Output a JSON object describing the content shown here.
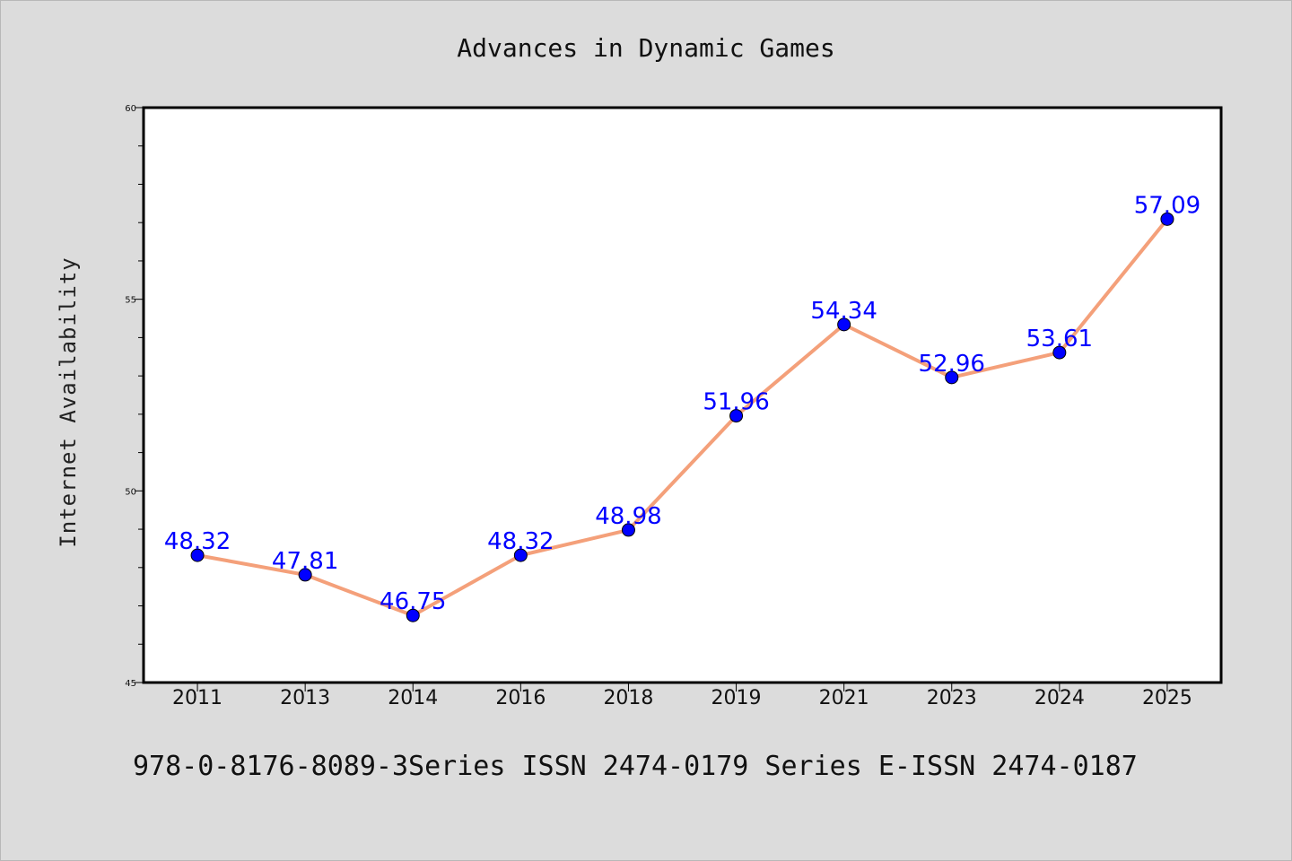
{
  "chart_data": {
    "type": "line",
    "title": "Advances in Dynamic Games",
    "xlabel": "",
    "ylabel": "Internet Availability",
    "categories": [
      "2011",
      "2013",
      "2014",
      "2016",
      "2018",
      "2019",
      "2021",
      "2023",
      "2024",
      "2025"
    ],
    "series": [
      {
        "values": [
          48.32,
          47.81,
          46.75,
          48.32,
          48.98,
          51.96,
          54.34,
          52.96,
          53.61,
          57.09
        ],
        "labels": [
          "48.32",
          "47.81",
          "46.75",
          "48.32",
          "48.98",
          "51.96",
          "54.34",
          "52.96",
          "53.61",
          "57.09"
        ],
        "line_color": "#f4a07a",
        "marker_color": "#0000ff"
      }
    ],
    "ylim": [
      45,
      60
    ],
    "yticks": [
      "45",
      "50",
      "55",
      "60"
    ],
    "grid": false,
    "legend": "none"
  },
  "footer_text": "978-0-8176-8089-3Series ISSN 2474-0179 Series E-ISSN 2474-0187"
}
